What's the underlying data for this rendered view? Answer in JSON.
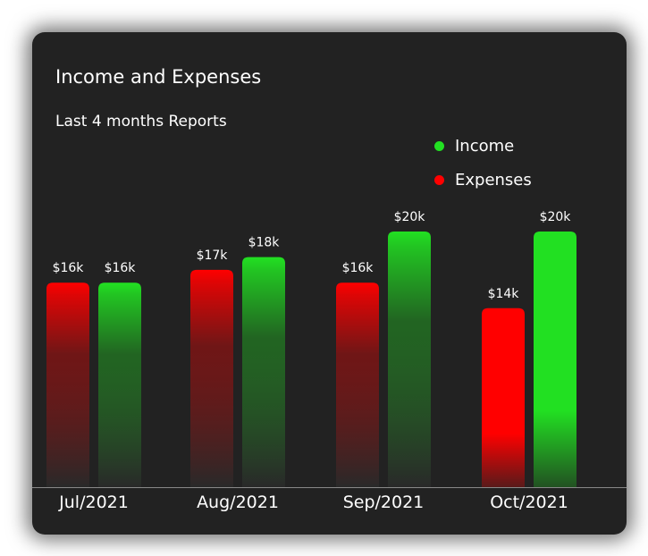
{
  "colors": {
    "income": "#22e022",
    "expenses": "#ff0000"
  },
  "chart_data": {
    "type": "bar",
    "title": "Income and Expenses",
    "subtitle": "Last 4 months Reports",
    "categories": [
      "Jul/2021",
      "Aug/2021",
      "Sep/2021",
      "Oct/2021"
    ],
    "series": [
      {
        "name": "Expenses",
        "values": [
          16,
          17,
          16,
          14
        ],
        "labels": [
          "$16k",
          "$17k",
          "$16k",
          "$14k"
        ]
      },
      {
        "name": "Income",
        "values": [
          16,
          18,
          20,
          20
        ],
        "labels": [
          "$16k",
          "$18k",
          "$20k",
          "$20k"
        ]
      }
    ],
    "legend": "top-right",
    "grid": false,
    "ylim": [
      0,
      22
    ]
  }
}
